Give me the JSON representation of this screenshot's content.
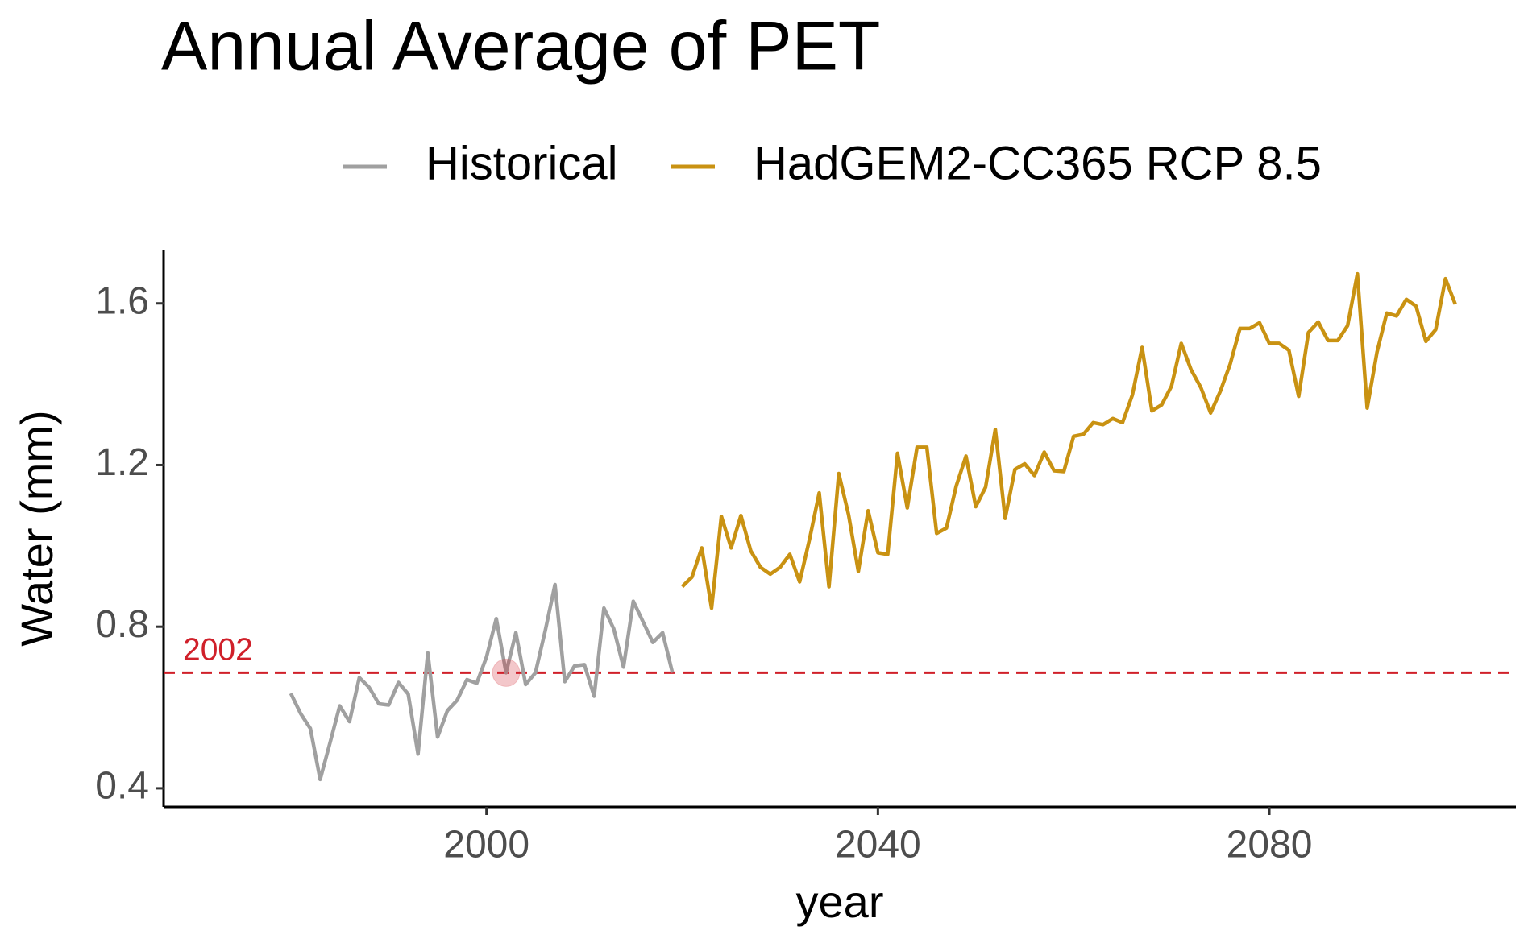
{
  "chart_data": {
    "type": "line",
    "title": "Annual Average of PET",
    "x_label": "year",
    "y_label": "Water (mm)",
    "xlim": [
      1967,
      2105.2
    ],
    "ylim": [
      0.354,
      1.733
    ],
    "xticks": [
      2000,
      2040,
      2080
    ],
    "yticks": [
      0.4,
      0.8,
      1.2,
      1.6
    ],
    "grid": false,
    "legend": "top",
    "series": [
      {
        "name": "Historical",
        "color": "#a0a0a0",
        "x": [
          1980,
          1981,
          1982,
          1983,
          1984,
          1985,
          1986,
          1987,
          1988,
          1989,
          1990,
          1991,
          1992,
          1993,
          1994,
          1995,
          1996,
          1997,
          1998,
          1999,
          2000,
          2001,
          2002,
          2003,
          2004,
          2005,
          2006,
          2007,
          2008,
          2009,
          2010,
          2011,
          2012,
          2013,
          2014,
          2015,
          2016,
          2017,
          2018,
          2019
        ],
        "values": [
          0.635,
          0.585,
          0.548,
          0.422,
          0.512,
          0.604,
          0.565,
          0.674,
          0.65,
          0.609,
          0.606,
          0.662,
          0.633,
          0.485,
          0.735,
          0.527,
          0.592,
          0.618,
          0.669,
          0.66,
          0.725,
          0.82,
          0.686,
          0.785,
          0.657,
          0.686,
          0.79,
          0.904,
          0.664,
          0.703,
          0.706,
          0.628,
          0.846,
          0.795,
          0.7,
          0.863,
          0.812,
          0.761,
          0.785,
          0.686
        ]
      },
      {
        "name": "HadGEM2-CC365 RCP 8.5",
        "color": "#c99212",
        "x": [
          2020,
          2021,
          2022,
          2023,
          2024,
          2025,
          2026,
          2027,
          2028,
          2029,
          2030,
          2031,
          2032,
          2033,
          2034,
          2035,
          2036,
          2037,
          2038,
          2039,
          2040,
          2041,
          2042,
          2043,
          2044,
          2045,
          2046,
          2047,
          2048,
          2049,
          2050,
          2051,
          2052,
          2053,
          2054,
          2055,
          2056,
          2057,
          2058,
          2059,
          2060,
          2061,
          2062,
          2063,
          2064,
          2065,
          2066,
          2067,
          2068,
          2069,
          2070,
          2071,
          2072,
          2073,
          2074,
          2075,
          2076,
          2077,
          2078,
          2079,
          2080,
          2081,
          2082,
          2083,
          2084,
          2085,
          2086,
          2087,
          2088,
          2089,
          2090,
          2091,
          2092,
          2093,
          2094,
          2095,
          2096,
          2097,
          2098,
          2099
        ],
        "values": [
          0.899,
          0.923,
          0.995,
          0.846,
          1.073,
          0.995,
          1.075,
          0.988,
          0.947,
          0.93,
          0.947,
          0.979,
          0.911,
          1.015,
          1.131,
          0.899,
          1.179,
          1.077,
          0.937,
          1.087,
          0.983,
          0.979,
          1.229,
          1.094,
          1.244,
          1.244,
          1.031,
          1.044,
          1.148,
          1.222,
          1.097,
          1.145,
          1.288,
          1.068,
          1.189,
          1.203,
          1.174,
          1.232,
          1.186,
          1.184,
          1.271,
          1.276,
          1.305,
          1.3,
          1.315,
          1.305,
          1.373,
          1.491,
          1.334,
          1.349,
          1.395,
          1.501,
          1.436,
          1.392,
          1.329,
          1.383,
          1.45,
          1.538,
          1.538,
          1.552,
          1.501,
          1.501,
          1.484,
          1.37,
          1.528,
          1.554,
          1.508,
          1.508,
          1.545,
          1.673,
          1.341,
          1.479,
          1.576,
          1.569,
          1.61,
          1.593,
          1.506,
          1.535,
          1.661,
          1.598
        ]
      }
    ],
    "reference": {
      "label": "2002",
      "x": 2002,
      "y": 0.686,
      "color": "#d0202a"
    }
  }
}
